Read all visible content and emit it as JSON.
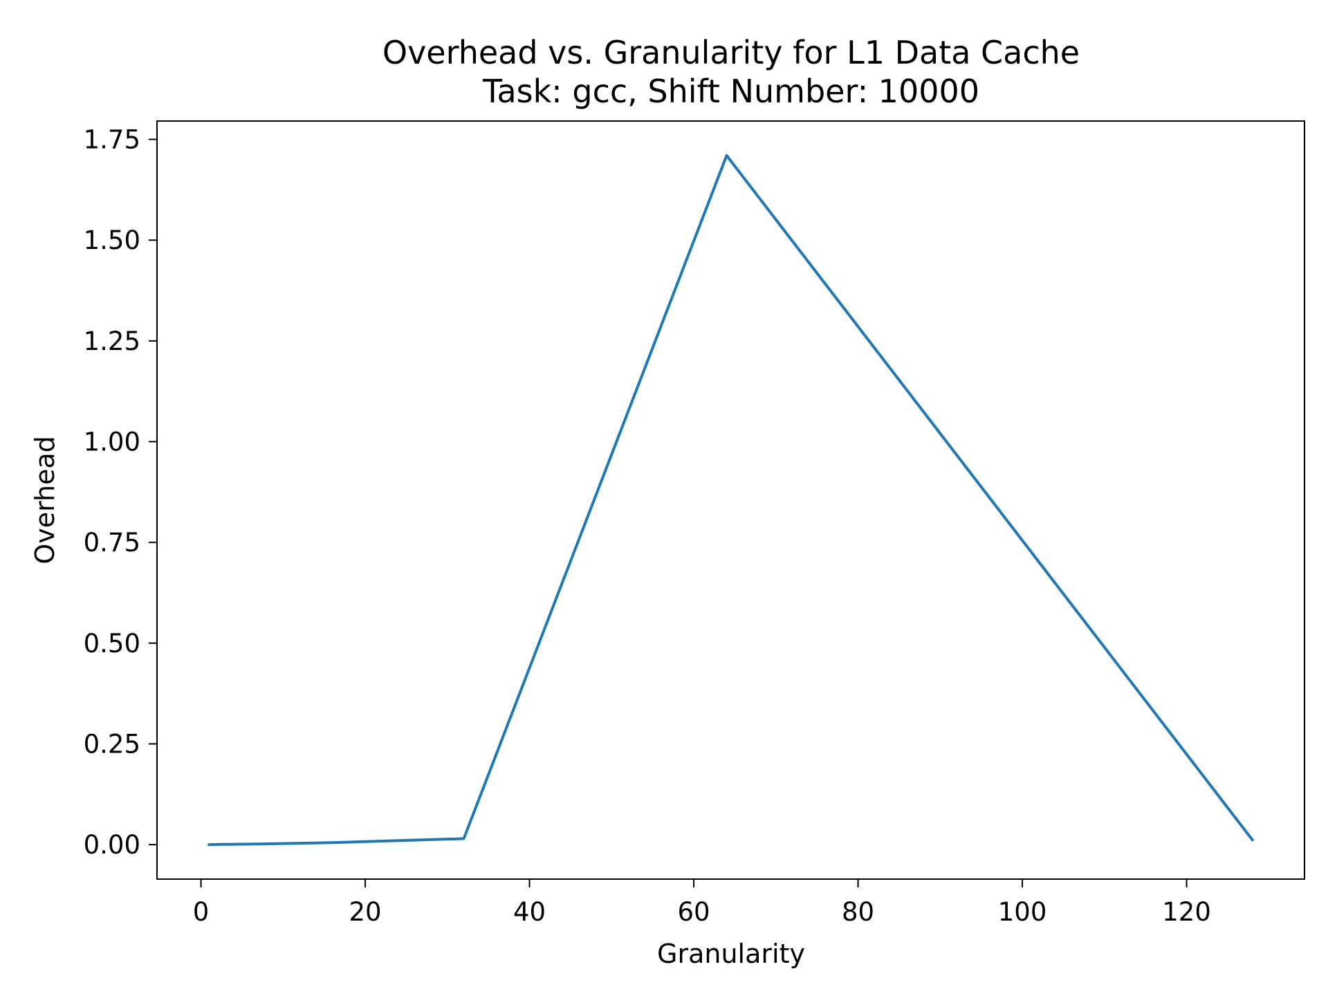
{
  "chart_data": {
    "type": "line",
    "title": "Overhead vs. Granularity for L1 Data Cache",
    "subtitle": "Task: gcc, Shift Number: 10000",
    "xlabel": "Granularity",
    "ylabel": "Overhead",
    "xlim": [
      -5.35,
      134.35
    ],
    "ylim": [
      -0.0855,
      1.7955
    ],
    "xticks": [
      0,
      20,
      40,
      60,
      80,
      100,
      120
    ],
    "xtick_labels": [
      "0",
      "20",
      "40",
      "60",
      "80",
      "100",
      "120"
    ],
    "yticks": [
      0,
      0.25,
      0.5,
      0.75,
      1.0,
      1.25,
      1.5,
      1.75
    ],
    "ytick_labels": [
      "0.00",
      "0.25",
      "0.50",
      "0.75",
      "1.00",
      "1.25",
      "1.50",
      "1.75"
    ],
    "grid": false,
    "series": [
      {
        "color": "#1f77b4",
        "x": [
          1,
          2,
          4,
          8,
          16,
          32,
          64,
          128
        ],
        "y": [
          0.0,
          0.0005,
          0.001,
          0.002,
          0.005,
          0.015,
          1.71,
          0.012
        ]
      }
    ]
  }
}
